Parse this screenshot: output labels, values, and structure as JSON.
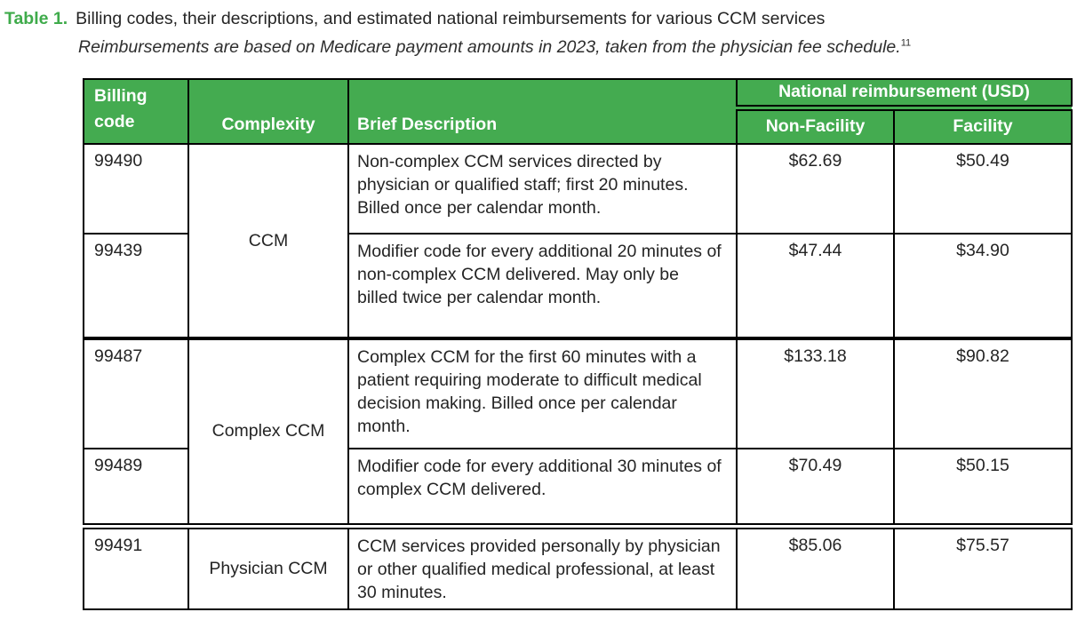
{
  "colors": {
    "header_green": "#44ab50",
    "label_green": "#3fab4b",
    "text_dark": "#252525",
    "border_black": "#000000"
  },
  "caption": {
    "label": "Table 1.",
    "title": "Billing codes, their descriptions, and estimated national reimbursements for various CCM services",
    "subtitle": "Reimbursements are based on Medicare payment amounts in 2023, taken from the physician fee schedule.",
    "citation_ref": "11"
  },
  "table": {
    "headers": {
      "billing_code": "Billing\ncode",
      "complexity": "Complexity",
      "description": "Brief Description",
      "reimbursement_group": "National reimbursement (USD)",
      "non_facility": "Non-Facility",
      "facility": "Facility"
    },
    "groups": [
      {
        "complexity": "CCM",
        "rows": [
          {
            "code": "99490",
            "description": "Non-complex CCM services directed by physician or qualified staff; first 20 minutes. Billed once per calendar month.",
            "non_facility": "$62.69",
            "facility": "$50.49"
          },
          {
            "code": "99439",
            "description": "Modifier code for every additional 20 minutes of non-complex CCM delivered. May only be billed twice per calendar month.",
            "non_facility": "$47.44",
            "facility": "$34.90"
          }
        ]
      },
      {
        "complexity": "Complex CCM",
        "rows": [
          {
            "code": "99487",
            "description": "Complex CCM for the first 60 minutes with a patient requiring moderate to difficult medical decision making. Billed once per calendar month.",
            "non_facility": "$133.18",
            "facility": "$90.82"
          },
          {
            "code": "99489",
            "description": "Modifier code for every additional 30 minutes of complex CCM delivered.",
            "non_facility": "$70.49",
            "facility": "$50.15"
          }
        ]
      },
      {
        "complexity": "Physician CCM",
        "rows": [
          {
            "code": "99491",
            "description": "CCM services provided personally by physician or other qualified medical professional, at least 30 minutes.",
            "non_facility": "$85.06",
            "facility": "$75.57"
          }
        ]
      }
    ]
  }
}
